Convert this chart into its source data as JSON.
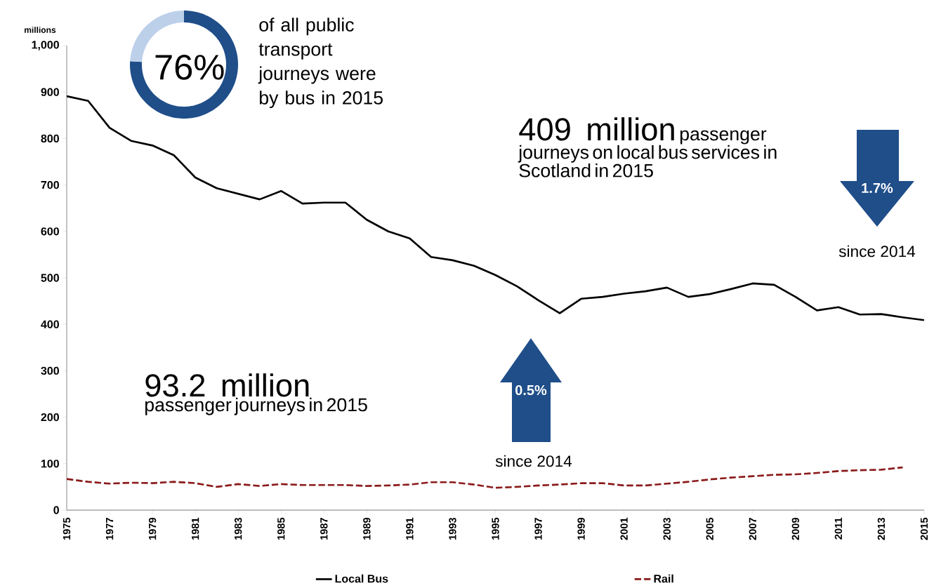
{
  "chart_data": [
    {
      "type": "line",
      "ylabel": "millions",
      "x": [
        1975,
        1976,
        1977,
        1978,
        1979,
        1980,
        1981,
        1982,
        1983,
        1984,
        1985,
        1986,
        1987,
        1988,
        1989,
        1990,
        1991,
        1992,
        1993,
        1994,
        1995,
        1996,
        1997,
        1998,
        1999,
        2000,
        2001,
        2002,
        2003,
        2004,
        2005,
        2006,
        2007,
        2008,
        2009,
        2010,
        2011,
        2012,
        2013,
        2014,
        2015
      ],
      "series": [
        {
          "name": "Local Bus",
          "color": "#000000",
          "line_style": "solid",
          "values": [
            891,
            881,
            823,
            795,
            785,
            764,
            716,
            693,
            681,
            669,
            687,
            660,
            662,
            662,
            625,
            600,
            585,
            545,
            538,
            526,
            506,
            482,
            452,
            424,
            455,
            459,
            466,
            471,
            479,
            459,
            465,
            476,
            488,
            485,
            459,
            430,
            437,
            421,
            422,
            415,
            409
          ]
        },
        {
          "name": "Rail",
          "color": "#8b1a1a",
          "line_style": "dashed",
          "values": [
            67,
            61,
            57,
            59,
            58,
            61,
            58,
            50,
            56,
            52,
            56,
            54,
            54,
            54,
            52,
            53,
            55,
            60,
            60,
            55,
            48,
            50,
            53,
            55,
            58,
            58,
            53,
            53,
            57,
            61,
            66,
            70,
            73,
            76,
            77,
            80,
            84,
            86,
            87,
            92,
            null
          ]
        }
      ],
      "xlim": [
        1975,
        2015
      ],
      "xticks": [
        1975,
        1977,
        1979,
        1981,
        1983,
        1985,
        1987,
        1989,
        1991,
        1993,
        1995,
        1997,
        1999,
        2001,
        2003,
        2005,
        2007,
        2009,
        2011,
        2013,
        2015
      ],
      "ylim": [
        0,
        1000
      ],
      "yticks": [
        0,
        100,
        200,
        300,
        400,
        500,
        600,
        700,
        800,
        900,
        {
          "value": 1000,
          "label": "1,000"
        }
      ],
      "grid": false,
      "legend": "bottom",
      "marker": "none",
      "annotations": [
        "409 million",
        "passenger journeys on local bus services in Scotland in 2015",
        "1.7%",
        "since 2014",
        "93.2 million",
        "passenger journeys in 2015",
        "0.5%",
        "since 2014"
      ]
    },
    {
      "type": "donut",
      "categories": [
        null,
        null
      ],
      "values": [
        76,
        24
      ],
      "colors": [
        "#1f4e89",
        "#bdd0ea"
      ],
      "value_labels": [
        "76%",
        null
      ],
      "annotations": [
        "of all public transport journeys were by bus in 2015"
      ]
    }
  ]
}
